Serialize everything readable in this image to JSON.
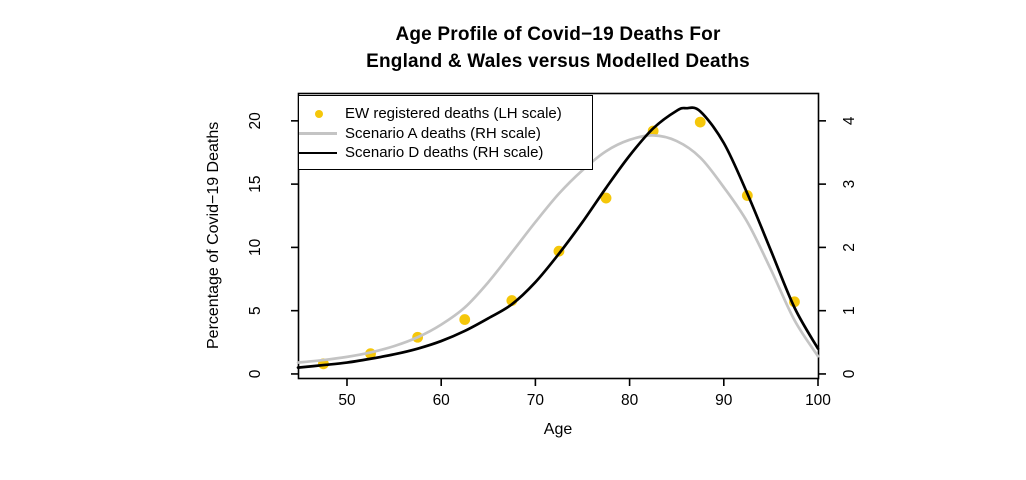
{
  "page": {
    "background": "#FFFFFF"
  },
  "chart_data": {
    "type": "line",
    "title_line1": "Age Profile of Covid−19 Deaths For",
    "title_line2": "England & Wales versus Modelled Deaths",
    "xlabel": "Age",
    "ylabel_left": "Percentage of Covid−19 Deaths",
    "grid": false,
    "legend_position": "topleft",
    "x_range": [
      44.8,
      100
    ],
    "y_left_range": [
      -0.32,
      22.2
    ],
    "y_right_range": [
      -0.064,
      4.44
    ],
    "x_ticks": [
      50,
      60,
      70,
      80,
      90,
      100
    ],
    "y_left_ticks": [
      0,
      5,
      10,
      15,
      20
    ],
    "y_right_ticks": [
      0,
      1,
      2,
      3,
      4
    ],
    "axis_color": "#000000",
    "series": [
      {
        "name": "EW registered deaths (LH scale)",
        "type": "scatter",
        "axis": "left",
        "color": "#F5C70A",
        "x": [
          47.5,
          52.5,
          57.5,
          62.5,
          67.5,
          72.5,
          77.5,
          82.5,
          87.5,
          92.5,
          97.5
        ],
        "y": [
          0.8,
          1.6,
          2.9,
          4.3,
          5.8,
          9.7,
          13.9,
          19.2,
          19.9,
          14.1,
          5.7
        ]
      },
      {
        "name": "Scenario A deaths (RH scale)",
        "type": "line",
        "axis": "right",
        "color": "#C4C4C4",
        "x": [
          44.8,
          47.5,
          50,
          52.5,
          55,
          57.5,
          60,
          62.5,
          65,
          67.5,
          70,
          72.5,
          75,
          77.5,
          80,
          82.5,
          85,
          87.5,
          90,
          92.5,
          95,
          97.5,
          100
        ],
        "y": [
          0.18,
          0.22,
          0.27,
          0.34,
          0.44,
          0.58,
          0.78,
          1.05,
          1.45,
          1.92,
          2.4,
          2.85,
          3.22,
          3.52,
          3.7,
          3.77,
          3.68,
          3.42,
          2.95,
          2.4,
          1.65,
          0.85,
          0.28
        ]
      },
      {
        "name": "Scenario D deaths (RH scale)",
        "type": "line",
        "axis": "right",
        "color": "#000000",
        "x": [
          44.8,
          47.5,
          50,
          52.5,
          55,
          57.5,
          60,
          62.5,
          65,
          67.5,
          70,
          72.5,
          75,
          77.5,
          80,
          82.5,
          85,
          86,
          87.5,
          90,
          92.5,
          95,
          97.5,
          100
        ],
        "y": [
          0.1,
          0.14,
          0.18,
          0.24,
          0.31,
          0.4,
          0.52,
          0.68,
          0.88,
          1.1,
          1.45,
          1.9,
          2.4,
          2.94,
          3.45,
          3.88,
          4.16,
          4.2,
          4.15,
          3.65,
          2.85,
          1.95,
          1.05,
          0.4
        ]
      }
    ]
  }
}
